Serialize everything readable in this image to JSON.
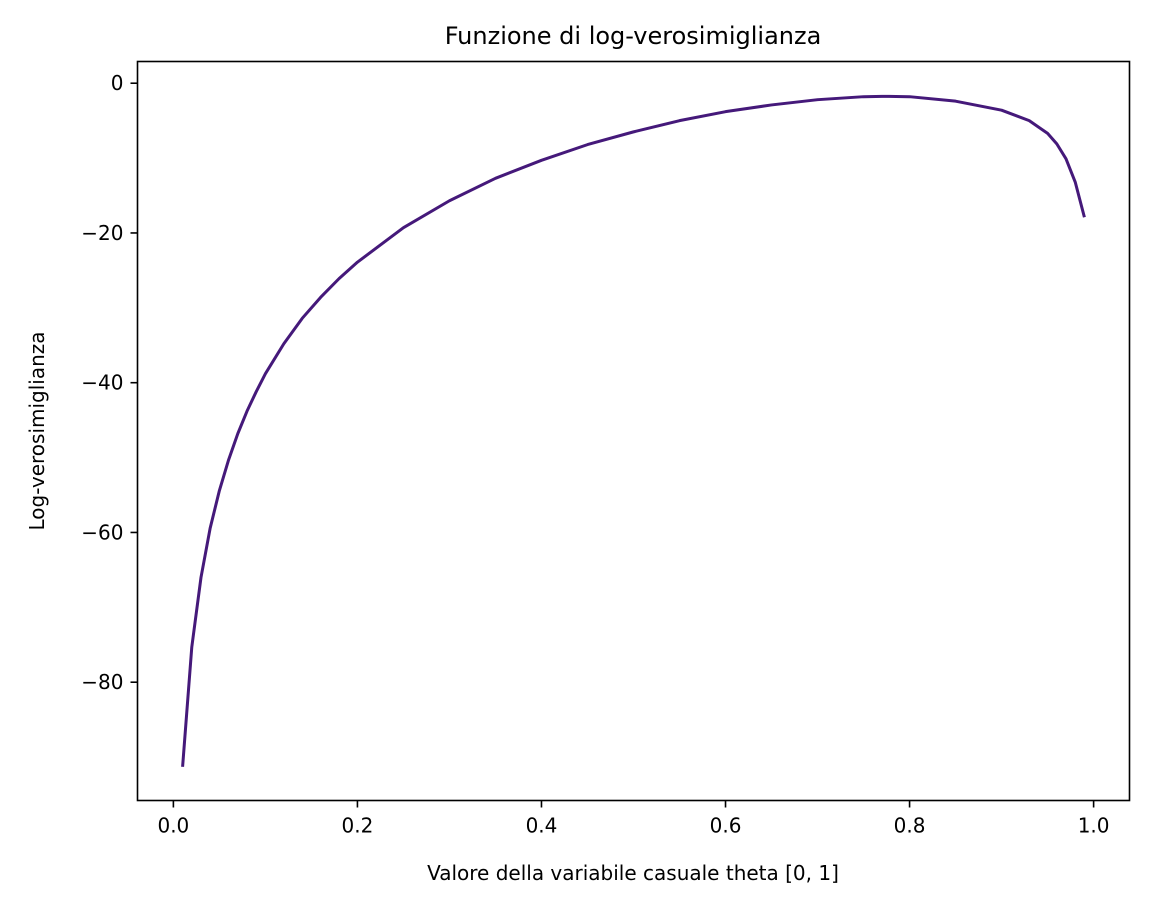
{
  "chart_data": {
    "type": "line",
    "title": "Funzione di log-verosimiglianza",
    "xlabel": "Valore della variabile casuale theta [0, 1]",
    "ylabel": "Log-verosimiglianza",
    "xlim": [
      -0.039,
      1.039
    ],
    "ylim": [
      -95.8,
      2.9
    ],
    "x_ticks": [
      {
        "value": 0.0,
        "label": "0.0"
      },
      {
        "value": 0.2,
        "label": "0.2"
      },
      {
        "value": 0.4,
        "label": "0.4"
      },
      {
        "value": 0.6,
        "label": "0.6"
      },
      {
        "value": 0.8,
        "label": "0.8"
      },
      {
        "value": 1.0,
        "label": "1.0"
      }
    ],
    "y_ticks": [
      {
        "value": 0,
        "label": "0"
      },
      {
        "value": -20,
        "label": "−20"
      },
      {
        "value": -40,
        "label": "−40"
      },
      {
        "value": -60,
        "label": "−60"
      },
      {
        "value": -80,
        "label": "−80"
      }
    ],
    "grid": false,
    "series": [
      {
        "color": "#45197a",
        "points": [
          [
            0.01,
            -91.3
          ],
          [
            0.02,
            -75.3
          ],
          [
            0.03,
            -66.0
          ],
          [
            0.04,
            -59.4
          ],
          [
            0.05,
            -54.4
          ],
          [
            0.06,
            -50.3
          ],
          [
            0.07,
            -46.8
          ],
          [
            0.08,
            -43.8
          ],
          [
            0.09,
            -41.2
          ],
          [
            0.1,
            -38.8
          ],
          [
            0.12,
            -34.8
          ],
          [
            0.14,
            -31.4
          ],
          [
            0.16,
            -28.6
          ],
          [
            0.18,
            -26.1
          ],
          [
            0.2,
            -23.9
          ],
          [
            0.25,
            -19.3
          ],
          [
            0.3,
            -15.7
          ],
          [
            0.35,
            -12.7
          ],
          [
            0.4,
            -10.3
          ],
          [
            0.45,
            -8.2
          ],
          [
            0.5,
            -6.5
          ],
          [
            0.55,
            -5.0
          ],
          [
            0.6,
            -3.8
          ],
          [
            0.65,
            -2.9
          ],
          [
            0.7,
            -2.2
          ],
          [
            0.75,
            -1.8
          ],
          [
            0.77,
            -1.75
          ],
          [
            0.8,
            -1.8
          ],
          [
            0.85,
            -2.4
          ],
          [
            0.9,
            -3.6
          ],
          [
            0.93,
            -5.0
          ],
          [
            0.95,
            -6.7
          ],
          [
            0.96,
            -8.1
          ],
          [
            0.97,
            -10.1
          ],
          [
            0.98,
            -13.2
          ],
          [
            0.99,
            -17.9
          ]
        ]
      }
    ]
  }
}
